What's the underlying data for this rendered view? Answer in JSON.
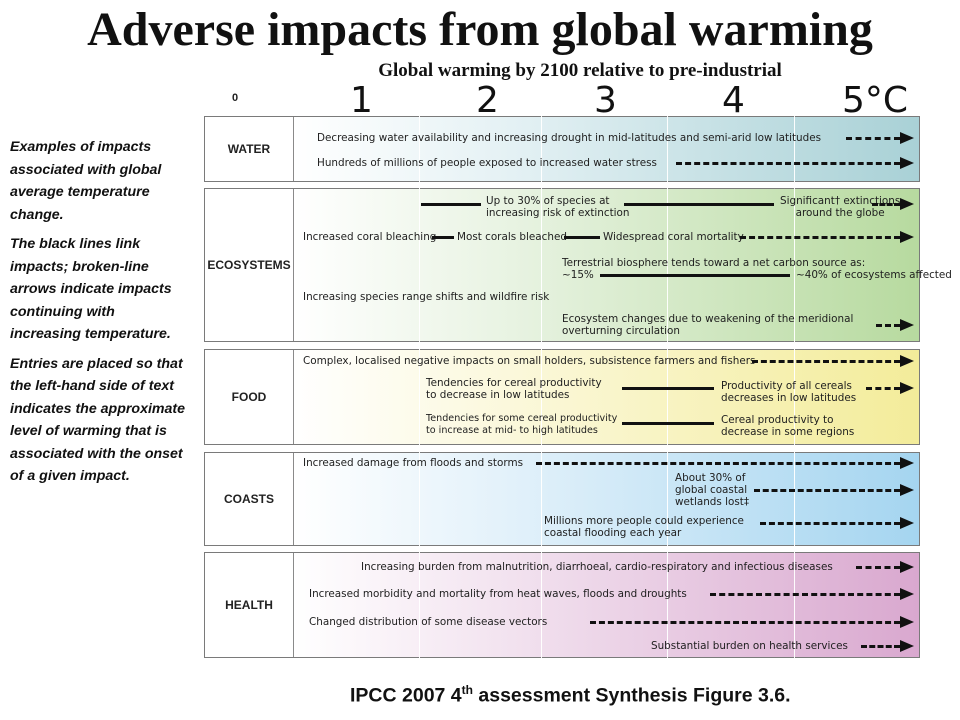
{
  "title": "Adverse impacts from global warming",
  "subtitle": "Global warming by 2100 relative to pre-industrial",
  "scale": {
    "zero": "0",
    "t1": "1",
    "t2": "2",
    "t3": "3",
    "t4": "4",
    "t5": "5°C"
  },
  "notes": {
    "p1": "Examples of impacts associated with global average temperature change.",
    "p2": "The black lines link impacts; broken-line arrows indicate impacts continuing with increasing temperature.",
    "p3": "Entries are placed so that the left-hand side of text indicates the approximate level of warming that is associated with the onset of a given impact."
  },
  "sectors": {
    "water": {
      "label": "WATER",
      "i1": "Decreasing water availability and increasing drought in mid-latitudes and semi-arid low latitudes",
      "i2": "Hundreds of millions of people exposed to increased water stress"
    },
    "ecosystems": {
      "label": "ECOSYSTEMS",
      "i1a": "Up to 30% of species at",
      "i1b": "increasing risk of extinction",
      "i2a": "Significant† extinctions",
      "i2b": "around the globe",
      "i3": "Increased coral bleaching",
      "i4": "Most corals bleached",
      "i5": "Widespread coral mortality",
      "i6a": "Terrestrial biosphere tends toward a net carbon source as:",
      "i6b": "~15%",
      "i6c": "~40% of ecosystems affected",
      "i7": "Increasing species range shifts and wildfire risk",
      "i8a": "Ecosystem changes due to weakening of the meridional",
      "i8b": "overturning circulation"
    },
    "food": {
      "label": "FOOD",
      "i1": "Complex, localised negative impacts on small holders, subsistence farmers and fishers",
      "i2a": "Tendencies for cereal productivity",
      "i2b": "to decrease in low latitudes",
      "i3a": "Productivity of all cereals",
      "i3b": "decreases in low latitudes",
      "i4a": "Tendencies for some cereal productivity",
      "i4b": "to increase at mid- to high latitudes",
      "i5a": "Cereal productivity to",
      "i5b": "decrease in some regions"
    },
    "coasts": {
      "label": "COASTS",
      "i1": "Increased damage from floods and storms",
      "i2a": "About 30% of",
      "i2b": "global coastal",
      "i2c": "wetlands lost‡",
      "i3a": "Millions more people could experience",
      "i3b": "coastal flooding each year"
    },
    "health": {
      "label": "HEALTH",
      "i1": "Increasing burden from malnutrition, diarrhoeal, cardio-respiratory and infectious diseases",
      "i2": "Increased morbidity and mortality from heat waves, floods and droughts",
      "i3": "Changed distribution of some disease vectors",
      "i4": "Substantial burden on health services"
    }
  },
  "footer": {
    "main": "IPCC 2007 4",
    "sup": "th",
    "rest": " assessment Synthesis Figure 3.6."
  }
}
